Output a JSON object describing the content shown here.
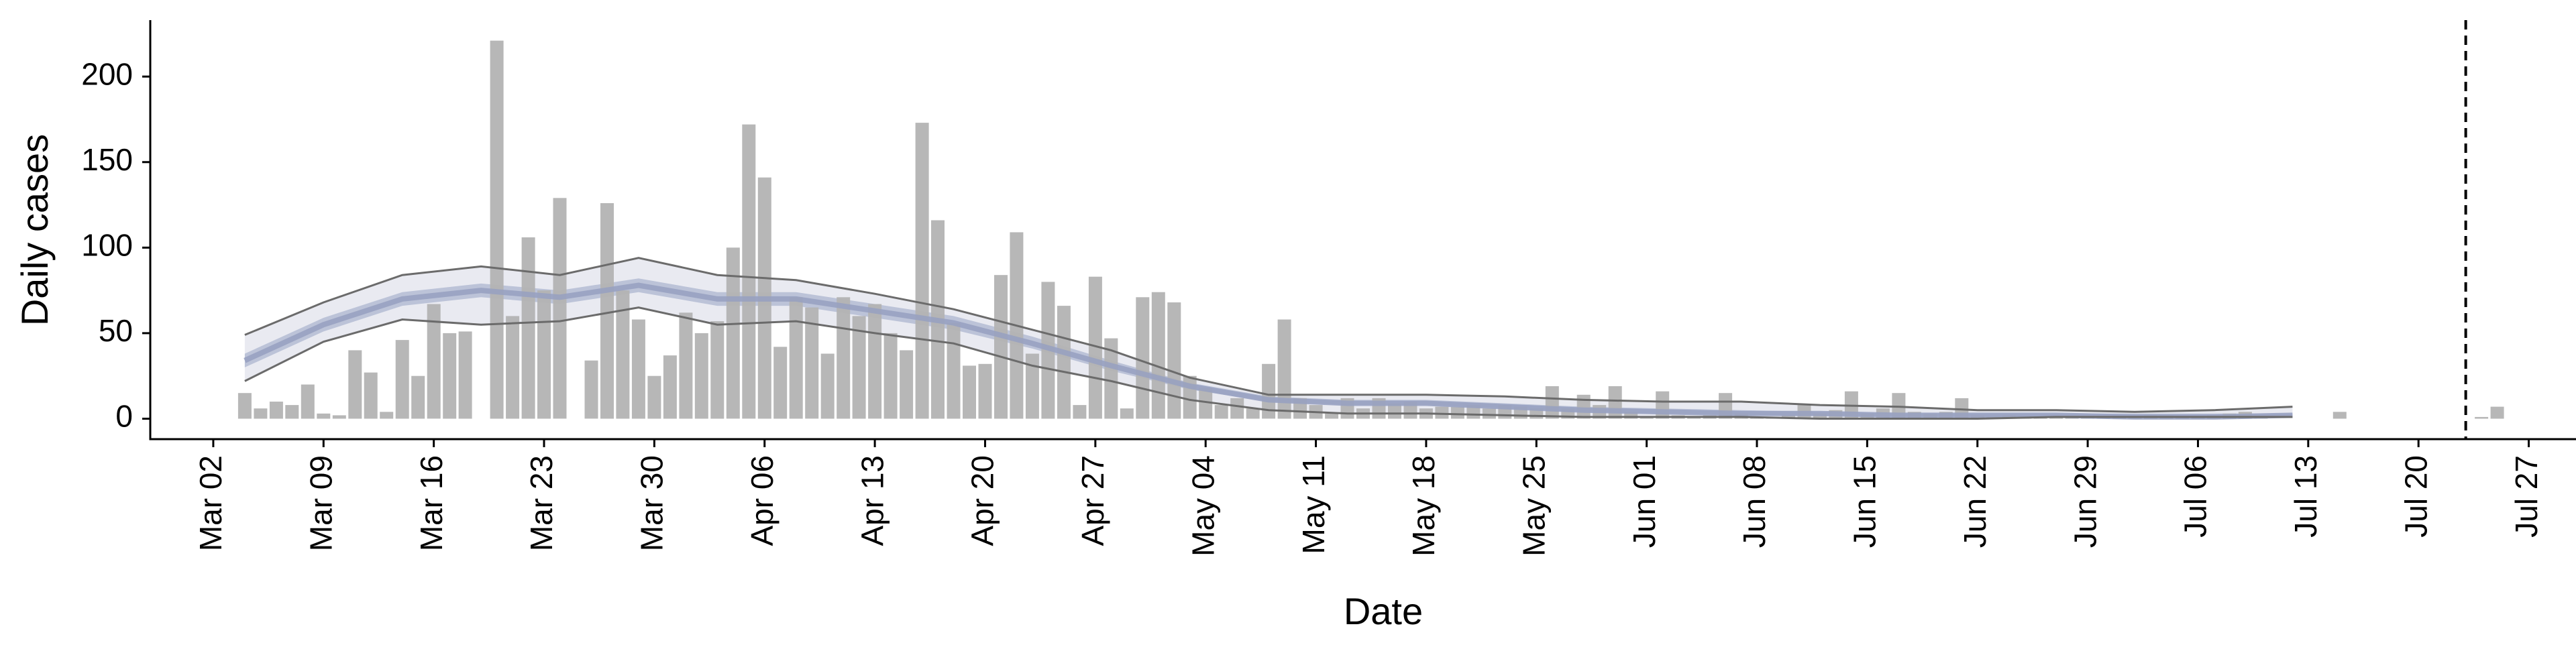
{
  "chart_data": {
    "type": "bar",
    "xlabel": "Date",
    "ylabel": "Daily cases",
    "x_start": "2020-03-02",
    "xlim": [
      "2020-02-27",
      "2020-07-30"
    ],
    "ylim": [
      -10,
      233
    ],
    "yticks": [
      0,
      50,
      100,
      150,
      200
    ],
    "xticks": [
      {
        "date": "2020-03-02",
        "label": "Mar 02"
      },
      {
        "date": "2020-03-09",
        "label": "Mar 09"
      },
      {
        "date": "2020-03-16",
        "label": "Mar 16"
      },
      {
        "date": "2020-03-23",
        "label": "Mar 23"
      },
      {
        "date": "2020-03-30",
        "label": "Mar 30"
      },
      {
        "date": "2020-04-06",
        "label": "Apr 06"
      },
      {
        "date": "2020-04-13",
        "label": "Apr 13"
      },
      {
        "date": "2020-04-20",
        "label": "Apr 20"
      },
      {
        "date": "2020-04-27",
        "label": "Apr 27"
      },
      {
        "date": "2020-05-04",
        "label": "May 04"
      },
      {
        "date": "2020-05-11",
        "label": "May 11"
      },
      {
        "date": "2020-05-18",
        "label": "May 18"
      },
      {
        "date": "2020-05-25",
        "label": "May 25"
      },
      {
        "date": "2020-06-01",
        "label": "Jun 01"
      },
      {
        "date": "2020-06-08",
        "label": "Jun 08"
      },
      {
        "date": "2020-06-15",
        "label": "Jun 15"
      },
      {
        "date": "2020-06-22",
        "label": "Jun 22"
      },
      {
        "date": "2020-06-29",
        "label": "Jun 29"
      },
      {
        "date": "2020-07-06",
        "label": "Jul 06"
      },
      {
        "date": "2020-07-13",
        "label": "Jul 13"
      },
      {
        "date": "2020-07-20",
        "label": "Jul 20"
      },
      {
        "date": "2020-07-27",
        "label": "Jul 27"
      }
    ],
    "daily_cases": [
      0,
      0,
      15,
      6,
      10,
      8,
      20,
      3,
      2,
      40,
      27,
      4,
      46,
      25,
      67,
      50,
      51,
      0,
      221,
      60,
      106,
      75,
      129,
      0,
      34,
      126,
      75,
      58,
      25,
      37,
      62,
      50,
      57,
      100,
      172,
      141,
      42,
      71,
      65,
      38,
      71,
      60,
      67,
      50,
      40,
      173,
      116,
      56,
      31,
      32,
      84,
      109,
      38,
      80,
      66,
      8,
      83,
      47,
      6,
      71,
      74,
      68,
      25,
      18,
      8,
      12,
      6,
      32,
      58,
      12,
      8,
      3,
      12,
      6,
      12,
      9,
      10,
      6,
      7,
      7,
      8,
      6,
      8,
      7,
      6,
      19,
      6,
      14,
      8,
      19,
      4,
      1,
      16,
      2,
      1,
      2,
      15,
      3,
      1,
      1,
      2,
      8,
      3,
      5,
      16,
      3,
      6,
      15,
      4,
      3,
      4,
      12,
      2,
      1,
      2,
      1,
      1,
      1,
      1,
      1,
      1,
      1,
      1,
      2,
      2,
      1,
      1,
      2,
      3,
      4,
      1,
      0,
      0,
      0,
      0,
      4,
      0,
      0,
      0,
      0,
      0,
      0,
      0,
      0,
      1,
      7
    ],
    "estimate_dates": [
      "2020-03-04",
      "2020-03-09",
      "2020-03-14",
      "2020-03-19",
      "2020-03-24",
      "2020-03-29",
      "2020-04-03",
      "2020-04-08",
      "2020-04-13",
      "2020-04-18",
      "2020-04-23",
      "2020-04-28",
      "2020-05-03",
      "2020-05-08",
      "2020-05-13",
      "2020-05-18",
      "2020-05-23",
      "2020-05-28",
      "2020-06-02",
      "2020-06-07",
      "2020-06-12",
      "2020-06-17",
      "2020-06-22",
      "2020-06-27",
      "2020-07-02",
      "2020-07-07",
      "2020-07-12"
    ],
    "estimate_median": [
      34,
      55,
      70,
      75,
      71,
      78,
      70,
      70,
      63,
      56,
      44,
      31,
      19,
      11,
      9,
      9,
      7,
      5,
      4,
      3,
      3,
      2,
      2,
      2,
      1,
      1,
      2
    ],
    "band_inner_low": [
      30,
      51,
      66,
      71,
      67,
      74,
      66,
      66,
      59,
      52,
      41,
      28,
      17,
      10,
      8,
      8,
      6,
      4,
      3,
      2,
      2,
      1,
      1,
      1,
      1,
      1,
      1
    ],
    "band_inner_high": [
      38,
      59,
      74,
      79,
      75,
      82,
      74,
      74,
      67,
      60,
      48,
      34,
      21,
      13,
      11,
      11,
      9,
      7,
      6,
      5,
      4,
      3,
      3,
      3,
      3,
      3,
      3
    ],
    "band_outer_low": [
      22,
      45,
      58,
      55,
      57,
      65,
      55,
      57,
      50,
      44,
      31,
      22,
      11,
      5,
      3,
      3,
      2,
      1,
      1,
      1,
      0,
      0,
      0,
      1,
      1,
      1,
      1
    ],
    "band_outer_high": [
      49,
      68,
      84,
      89,
      84,
      94,
      84,
      81,
      73,
      64,
      52,
      40,
      24,
      14,
      14,
      14,
      13,
      11,
      10,
      10,
      8,
      7,
      5,
      5,
      4,
      5,
      7
    ],
    "vline_date": "2020-07-23",
    "colors": {
      "bar": "#b3b3b3",
      "band_outer": "#e9eaf1",
      "band_inner": "#bcc3d8",
      "median": "#96a0c1",
      "band_edge": "#6b6b6b",
      "axis": "#000000"
    },
    "grid": false,
    "legend": "none"
  }
}
